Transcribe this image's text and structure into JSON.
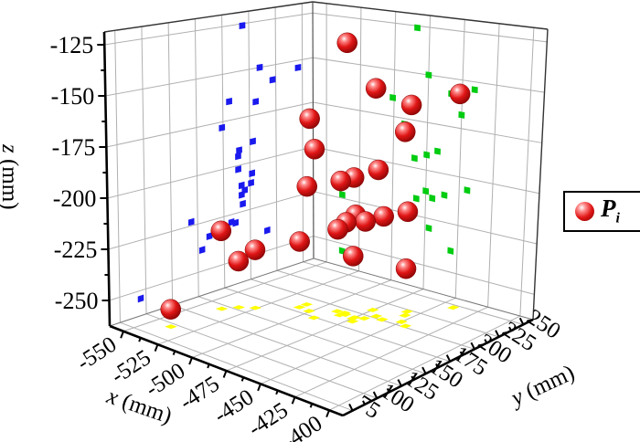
{
  "figure": {
    "type": "3d-scatter",
    "background": "#ffffff"
  },
  "legend": {
    "series_label_main": "P",
    "series_label_sub": "i"
  },
  "axes": {
    "x": {
      "title_letter": "x",
      "title_unit": "(mm)",
      "range": [
        -560,
        -390
      ],
      "ticks": [
        -550,
        -525,
        -500,
        -475,
        -450,
        -425,
        -400
      ],
      "tick_labels": [
        "-550",
        "-525",
        "-500",
        "-475",
        "-450",
        "-425",
        "-400"
      ]
    },
    "y": {
      "title_letter": "y",
      "title_unit": "(mm)",
      "range": [
        65,
        260
      ],
      "ticks": [
        75,
        100,
        125,
        150,
        175,
        200,
        225,
        250
      ],
      "tick_labels": [
        "75",
        "100",
        "125",
        "150",
        "175",
        "200",
        "225",
        "250"
      ]
    },
    "z": {
      "title_letter": "z",
      "title_unit": "(mm)",
      "range": [
        -262.5,
        -118.75
      ],
      "ticks": [
        -125,
        -150,
        -175,
        -200,
        -225,
        -250
      ],
      "tick_labels": [
        "-125",
        "-150",
        "-175",
        "-200",
        "-225",
        "-250"
      ]
    }
  },
  "chart_data": {
    "type": "scatter",
    "subtype": "scatter3d",
    "series": [
      {
        "name": "Pi",
        "marker": "sphere",
        "color": "#e01515",
        "points": [
          [
            -484,
            194,
            -126
          ],
          [
            -475,
            210,
            -150
          ],
          [
            -441,
            246,
            -154
          ],
          [
            -458,
            222,
            -158
          ],
          [
            -501,
            181,
            -165
          ],
          [
            -450,
            206,
            -168
          ],
          [
            -492,
            174,
            -178
          ],
          [
            -467,
            203,
            -189
          ],
          [
            -509,
            189,
            -202
          ],
          [
            -484,
            189,
            -195
          ],
          [
            -475,
            190,
            -192
          ],
          [
            -489,
            193,
            -221
          ],
          [
            -482,
            192,
            -216
          ],
          [
            -475,
            192,
            -211
          ],
          [
            -461,
            201,
            -211
          ],
          [
            -444,
            202,
            -206
          ],
          [
            -470,
            195,
            -214
          ],
          [
            -509,
            182,
            -229
          ],
          [
            -538,
            144,
            -223
          ],
          [
            -533,
            154,
            -239
          ],
          [
            -526,
            161,
            -233
          ],
          [
            -472,
            186,
            -230
          ],
          [
            -455,
            216,
            -239
          ],
          [
            -538,
            95,
            -254
          ]
        ]
      }
    ],
    "projections": [
      {
        "plane": "x-min-wall",
        "shows": "y-z",
        "marker": "square",
        "color": "#1a1aee"
      },
      {
        "plane": "y-max-wall",
        "shows": "x-z",
        "marker": "square",
        "color": "#00cc11"
      },
      {
        "plane": "z-min-floor",
        "shows": "x-y",
        "marker": "square",
        "color": "#ffff00"
      }
    ],
    "grid": true,
    "legend_position": "right-middle"
  },
  "colors": {
    "sphere_base": "#e01515",
    "sphere_dark": "#7e0303",
    "sphere_highlight": "#ffffff",
    "grid": "#b0b0b0",
    "edge": "#444444",
    "axis": "#000000",
    "wall": "#ffffff"
  }
}
